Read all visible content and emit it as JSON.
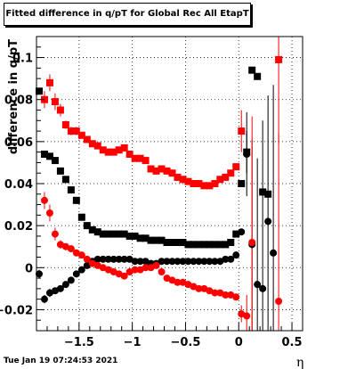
{
  "title": "Fitted difference in q/pT for Global Rec All EtapT",
  "timestamp": "Tue Jan 19 07:24:53 2021",
  "chart_data": {
    "type": "scatter",
    "title": "Fitted difference in q/pT for Global Rec All EtapT",
    "xlabel": "η",
    "ylabel": "difference in q/pT",
    "xlim": [
      -1.9,
      0.6
    ],
    "ylim": [
      -0.03,
      0.11
    ],
    "xticks": [
      -1.5,
      -1,
      -0.5,
      0,
      0.5
    ],
    "xtick_labels": [
      "−1.5",
      "−1",
      "−0.5",
      "0",
      "0.5"
    ],
    "yticks": [
      -0.02,
      0,
      0.02,
      0.04,
      0.06,
      0.08,
      0.1
    ],
    "ytick_labels": [
      "−0.02",
      "0",
      "0.02",
      "0.04",
      "0.06",
      "0.08",
      "0.1"
    ],
    "grid": true,
    "series": [
      {
        "color": "#000000",
        "marker": "square",
        "points": [
          [
            -1.875,
            0.084,
            0
          ],
          [
            -1.825,
            0.054,
            0
          ],
          [
            -1.775,
            0.053,
            0
          ],
          [
            -1.725,
            0.051,
            0
          ],
          [
            -1.675,
            0.046,
            0
          ],
          [
            -1.625,
            0.042,
            0
          ],
          [
            -1.575,
            0.037,
            0
          ],
          [
            -1.525,
            0.032,
            0
          ],
          [
            -1.475,
            0.024,
            0
          ],
          [
            -1.425,
            0.02,
            0
          ],
          [
            -1.375,
            0.018,
            0
          ],
          [
            -1.325,
            0.017,
            0
          ],
          [
            -1.275,
            0.016,
            0
          ],
          [
            -1.225,
            0.016,
            0
          ],
          [
            -1.175,
            0.016,
            0
          ],
          [
            -1.125,
            0.016,
            0
          ],
          [
            -1.075,
            0.016,
            0
          ],
          [
            -1.025,
            0.015,
            0
          ],
          [
            -0.975,
            0.015,
            0
          ],
          [
            -0.925,
            0.014,
            0
          ],
          [
            -0.875,
            0.014,
            0
          ],
          [
            -0.825,
            0.013,
            0
          ],
          [
            -0.775,
            0.013,
            0
          ],
          [
            -0.725,
            0.013,
            0
          ],
          [
            -0.675,
            0.012,
            0
          ],
          [
            -0.625,
            0.012,
            0
          ],
          [
            -0.575,
            0.012,
            0
          ],
          [
            -0.525,
            0.012,
            0
          ],
          [
            -0.475,
            0.011,
            0
          ],
          [
            -0.425,
            0.011,
            0
          ],
          [
            -0.375,
            0.011,
            0
          ],
          [
            -0.325,
            0.011,
            0
          ],
          [
            -0.275,
            0.011,
            0
          ],
          [
            -0.225,
            0.011,
            0
          ],
          [
            -0.175,
            0.011,
            0
          ],
          [
            -0.125,
            0.011,
            0
          ],
          [
            -0.075,
            0.012,
            0
          ],
          [
            -0.025,
            0.016,
            0
          ],
          [
            0.025,
            0.04,
            0
          ],
          [
            0.075,
            0.055,
            0.01
          ],
          [
            0.125,
            0.094,
            0
          ],
          [
            0.175,
            0.091,
            0
          ],
          [
            0.225,
            0.036,
            0
          ],
          [
            0.275,
            0.035,
            0
          ]
        ]
      },
      {
        "color": "#000000",
        "marker": "circle",
        "points": [
          [
            -1.875,
            -0.003,
            0.002
          ],
          [
            -1.825,
            -0.015,
            0.002
          ],
          [
            -1.775,
            -0.012,
            0.002
          ],
          [
            -1.725,
            -0.011,
            0.001
          ],
          [
            -1.675,
            -0.01,
            0.001
          ],
          [
            -1.625,
            -0.008,
            0.001
          ],
          [
            -1.575,
            -0.006,
            0.001
          ],
          [
            -1.525,
            -0.003,
            0.001
          ],
          [
            -1.475,
            -0.001,
            0.001
          ],
          [
            -1.425,
            0.001,
            0.001
          ],
          [
            -1.375,
            0.003,
            0
          ],
          [
            -1.325,
            0.004,
            0
          ],
          [
            -1.275,
            0.004,
            0
          ],
          [
            -1.225,
            0.004,
            0
          ],
          [
            -1.175,
            0.004,
            0
          ],
          [
            -1.125,
            0.004,
            0
          ],
          [
            -1.075,
            0.004,
            0
          ],
          [
            -1.025,
            0.004,
            0
          ],
          [
            -0.975,
            0.003,
            0
          ],
          [
            -0.925,
            0.003,
            0
          ],
          [
            -0.875,
            0.003,
            0
          ],
          [
            -0.825,
            0.002,
            0
          ],
          [
            -0.775,
            0.002,
            0
          ],
          [
            -0.725,
            0.003,
            0
          ],
          [
            -0.675,
            0.003,
            0
          ],
          [
            -0.625,
            0.003,
            0
          ],
          [
            -0.575,
            0.003,
            0
          ],
          [
            -0.525,
            0.003,
            0
          ],
          [
            -0.475,
            0.003,
            0
          ],
          [
            -0.425,
            0.003,
            0
          ],
          [
            -0.375,
            0.003,
            0
          ],
          [
            -0.325,
            0.003,
            0
          ],
          [
            -0.275,
            0.003,
            0
          ],
          [
            -0.225,
            0.003,
            0
          ],
          [
            -0.175,
            0.003,
            0
          ],
          [
            -0.125,
            0.004,
            0
          ],
          [
            -0.075,
            0.004,
            0
          ],
          [
            -0.025,
            0.006,
            0
          ],
          [
            0.025,
            0.017,
            0
          ],
          [
            0.075,
            0.054,
            0.02
          ],
          [
            0.125,
            0.011,
            0.05
          ],
          [
            0.175,
            -0.008,
            0.06
          ],
          [
            0.225,
            -0.01,
            0.08
          ],
          [
            0.275,
            0.022,
            0.06
          ],
          [
            0.325,
            0.007,
            0.08
          ]
        ]
      },
      {
        "color": "#ff0000",
        "marker": "square",
        "points": [
          [
            -1.825,
            0.08,
            0.004
          ],
          [
            -1.775,
            0.088,
            0.004
          ],
          [
            -1.725,
            0.079,
            0.004
          ],
          [
            -1.675,
            0.075,
            0.003
          ],
          [
            -1.625,
            0.068,
            0.002
          ],
          [
            -1.575,
            0.065,
            0.002
          ],
          [
            -1.525,
            0.065,
            0.002
          ],
          [
            -1.475,
            0.063,
            0.001
          ],
          [
            -1.425,
            0.061,
            0.001
          ],
          [
            -1.375,
            0.059,
            0.001
          ],
          [
            -1.325,
            0.058,
            0
          ],
          [
            -1.275,
            0.056,
            0
          ],
          [
            -1.225,
            0.055,
            0
          ],
          [
            -1.175,
            0.055,
            0
          ],
          [
            -1.125,
            0.056,
            0
          ],
          [
            -1.075,
            0.057,
            0
          ],
          [
            -1.025,
            0.054,
            0
          ],
          [
            -0.975,
            0.052,
            0
          ],
          [
            -0.925,
            0.052,
            0
          ],
          [
            -0.875,
            0.051,
            0
          ],
          [
            -0.825,
            0.047,
            0
          ],
          [
            -0.775,
            0.046,
            0
          ],
          [
            -0.725,
            0.047,
            0
          ],
          [
            -0.675,
            0.046,
            0
          ],
          [
            -0.625,
            0.045,
            0
          ],
          [
            -0.575,
            0.043,
            0
          ],
          [
            -0.525,
            0.042,
            0
          ],
          [
            -0.475,
            0.041,
            0
          ],
          [
            -0.425,
            0.04,
            0
          ],
          [
            -0.375,
            0.04,
            0
          ],
          [
            -0.325,
            0.039,
            0
          ],
          [
            -0.275,
            0.039,
            0
          ],
          [
            -0.225,
            0.04,
            0
          ],
          [
            -0.175,
            0.042,
            0
          ],
          [
            -0.125,
            0.043,
            0
          ],
          [
            -0.075,
            0.045,
            0
          ],
          [
            -0.025,
            0.048,
            0.001
          ],
          [
            0.025,
            0.065,
            0.01
          ],
          [
            0.375,
            0.099,
            0.04
          ]
        ]
      },
      {
        "color": "#ff0000",
        "marker": "circle",
        "points": [
          [
            -1.825,
            0.032,
            0.004
          ],
          [
            -1.775,
            0.026,
            0.004
          ],
          [
            -1.725,
            0.016,
            0.003
          ],
          [
            -1.675,
            0.011,
            0.002
          ],
          [
            -1.625,
            0.01,
            0.001
          ],
          [
            -1.575,
            0.009,
            0.001
          ],
          [
            -1.525,
            0.007,
            0.001
          ],
          [
            -1.475,
            0.006,
            0.001
          ],
          [
            -1.425,
            0.004,
            0
          ],
          [
            -1.375,
            0.002,
            0
          ],
          [
            -1.325,
            0.001,
            0
          ],
          [
            -1.275,
            0,
            0
          ],
          [
            -1.225,
            -0.001,
            0
          ],
          [
            -1.175,
            -0.002,
            0
          ],
          [
            -1.125,
            -0.003,
            0
          ],
          [
            -1.075,
            -0.004,
            0
          ],
          [
            -1.025,
            -0.002,
            0
          ],
          [
            -0.975,
            -0.001,
            0
          ],
          [
            -0.925,
            -0.001,
            0
          ],
          [
            -0.875,
            0,
            0
          ],
          [
            -0.825,
            0,
            0
          ],
          [
            -0.775,
            0.001,
            0
          ],
          [
            -0.725,
            -0.002,
            0
          ],
          [
            -0.675,
            -0.005,
            0
          ],
          [
            -0.625,
            -0.006,
            0
          ],
          [
            -0.575,
            -0.007,
            0
          ],
          [
            -0.525,
            -0.007,
            0
          ],
          [
            -0.475,
            -0.008,
            0
          ],
          [
            -0.425,
            -0.009,
            0
          ],
          [
            -0.375,
            -0.01,
            0
          ],
          [
            -0.325,
            -0.01,
            0
          ],
          [
            -0.275,
            -0.011,
            0
          ],
          [
            -0.225,
            -0.012,
            0
          ],
          [
            -0.175,
            -0.012,
            0
          ],
          [
            -0.125,
            -0.013,
            0
          ],
          [
            -0.075,
            -0.013,
            0
          ],
          [
            -0.025,
            -0.014,
            0
          ],
          [
            0.025,
            -0.022,
            0.004
          ],
          [
            0.075,
            -0.023,
            0.01
          ],
          [
            0.125,
            0.012,
            0.06
          ],
          [
            0.375,
            -0.016,
            0.08
          ]
        ]
      }
    ]
  }
}
